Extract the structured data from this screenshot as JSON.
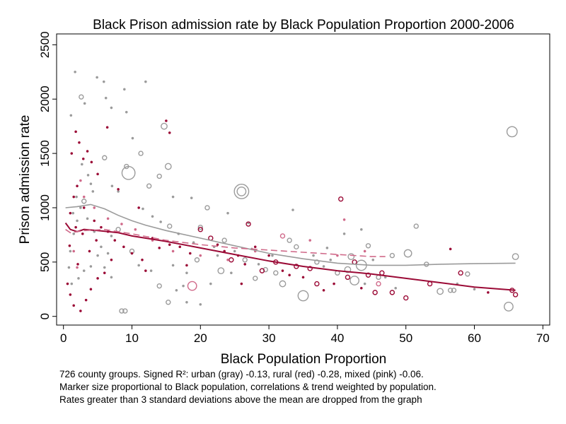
{
  "chart_data": {
    "type": "scatter",
    "title": "Black Prison admission rate by Black Population Proportion 2000-2006",
    "xlabel": "Black Population Proportion",
    "ylabel": "Prison admission rate",
    "xlim": [
      -1,
      71
    ],
    "ylim": [
      -80,
      2600
    ],
    "xticks": [
      "0",
      "10",
      "20",
      "30",
      "40",
      "50",
      "60",
      "70"
    ],
    "xtick_values": [
      0,
      10,
      20,
      30,
      40,
      50,
      60,
      70
    ],
    "yticks": [
      "0",
      "500",
      "1000",
      "1500",
      "2000",
      "2500"
    ],
    "ytick_values": [
      0,
      500,
      1000,
      1500,
      2000,
      2500
    ],
    "grid": false,
    "legend": "none",
    "colors": {
      "urban": "#9b9b9b",
      "rural": "#9b0a36",
      "mixed": "#d06a8a"
    },
    "series": [
      {
        "group": "urban",
        "points": [
          [
            4.9,
            2200,
            1
          ],
          [
            1.7,
            2250,
            1
          ],
          [
            5.9,
            2160,
            1
          ],
          [
            8.9,
            2090,
            1
          ],
          [
            12.0,
            2160,
            1
          ],
          [
            2.6,
            2020,
            2
          ],
          [
            6.2,
            2010,
            1
          ],
          [
            3.1,
            1960,
            1
          ],
          [
            7.0,
            1920,
            1
          ],
          [
            1.1,
            1850,
            1
          ],
          [
            9.2,
            1880,
            1
          ],
          [
            10.1,
            1640,
            1
          ],
          [
            11.3,
            1500,
            2
          ],
          [
            65.5,
            1700,
            6
          ],
          [
            14.7,
            1750,
            3
          ],
          [
            6.0,
            1460,
            2
          ],
          [
            9.5,
            1320,
            8
          ],
          [
            9.2,
            1380,
            2
          ],
          [
            15.3,
            1380,
            3
          ],
          [
            14.0,
            1290,
            2
          ],
          [
            26.0,
            1150,
            9
          ],
          [
            26.0,
            1150,
            5
          ],
          [
            4.0,
            1220,
            1
          ],
          [
            3.0,
            1060,
            2
          ],
          [
            7.1,
            1200,
            1
          ],
          [
            8.0,
            1150,
            1
          ],
          [
            12.5,
            1200,
            2
          ],
          [
            16.0,
            1100,
            1
          ],
          [
            18.7,
            1090,
            1
          ],
          [
            21.0,
            1000,
            2
          ],
          [
            24.0,
            950,
            1
          ],
          [
            27.0,
            860,
            1
          ],
          [
            33.5,
            980,
            1
          ],
          [
            43.5,
            800,
            1
          ],
          [
            51.5,
            830,
            2
          ],
          [
            15.5,
            830,
            2
          ],
          [
            20.0,
            820,
            2
          ],
          [
            23.5,
            700,
            2
          ],
          [
            22.0,
            640,
            1
          ],
          [
            19.5,
            520,
            2
          ],
          [
            23.0,
            420,
            3
          ],
          [
            18.0,
            400,
            1
          ],
          [
            21.5,
            300,
            1
          ],
          [
            24.5,
            400,
            1
          ],
          [
            26.5,
            520,
            2
          ],
          [
            27.5,
            620,
            1
          ],
          [
            28.0,
            350,
            2
          ],
          [
            29.5,
            430,
            2
          ],
          [
            30.5,
            560,
            1
          ],
          [
            31.0,
            400,
            2
          ],
          [
            32.0,
            300,
            3
          ],
          [
            33.0,
            700,
            2
          ],
          [
            34.0,
            640,
            2
          ],
          [
            35.0,
            190,
            6
          ],
          [
            37.0,
            500,
            2
          ],
          [
            38.0,
            460,
            1
          ],
          [
            38.5,
            630,
            1
          ],
          [
            40.0,
            400,
            2
          ],
          [
            41.5,
            430,
            3
          ],
          [
            42.0,
            550,
            3
          ],
          [
            42.5,
            330,
            5
          ],
          [
            43.5,
            470,
            6
          ],
          [
            44.5,
            650,
            2
          ],
          [
            46.0,
            360,
            2
          ],
          [
            47.0,
            360,
            1
          ],
          [
            48.0,
            560,
            2
          ],
          [
            50.3,
            580,
            4
          ],
          [
            55.0,
            230,
            3
          ],
          [
            56.5,
            240,
            2
          ],
          [
            57.0,
            240,
            2
          ],
          [
            59.0,
            390,
            2
          ],
          [
            65.0,
            90,
            5
          ],
          [
            66.0,
            550,
            3
          ],
          [
            16.0,
            470,
            1
          ],
          [
            16.5,
            240,
            1
          ],
          [
            17.5,
            280,
            1
          ],
          [
            18.0,
            130,
            1
          ],
          [
            20.0,
            110,
            1
          ],
          [
            14.0,
            280,
            2
          ],
          [
            15.3,
            130,
            2
          ],
          [
            12.8,
            420,
            1
          ],
          [
            11.0,
            470,
            1
          ],
          [
            10.0,
            600,
            2
          ],
          [
            8.0,
            800,
            2
          ],
          [
            7.0,
            740,
            1
          ],
          [
            6.5,
            580,
            1
          ],
          [
            5.5,
            640,
            1
          ],
          [
            4.5,
            780,
            1
          ],
          [
            3.5,
            900,
            1
          ],
          [
            2.5,
            1000,
            1
          ],
          [
            2.0,
            880,
            1
          ],
          [
            1.5,
            760,
            1
          ],
          [
            1.0,
            600,
            1
          ],
          [
            0.8,
            450,
            1
          ],
          [
            1.2,
            300,
            1
          ],
          [
            2.2,
            350,
            1
          ],
          [
            3.0,
            420,
            1
          ],
          [
            4.0,
            460,
            1
          ],
          [
            5.0,
            560,
            1
          ],
          [
            6.0,
            450,
            1
          ],
          [
            7.0,
            360,
            1
          ],
          [
            8.5,
            50,
            2
          ],
          [
            9.0,
            50,
            2
          ],
          [
            2.7,
            1400,
            1
          ],
          [
            3.6,
            1300,
            1
          ],
          [
            4.3,
            1150,
            1
          ],
          [
            1.9,
            1100,
            1
          ],
          [
            1.4,
            950,
            1
          ],
          [
            11.6,
            990,
            1
          ],
          [
            13.0,
            920,
            1
          ],
          [
            14.2,
            870,
            1
          ],
          [
            16.8,
            760,
            1
          ],
          [
            19.0,
            680,
            1
          ],
          [
            22.5,
            560,
            1
          ],
          [
            25.0,
            600,
            1
          ],
          [
            28.5,
            480,
            1
          ],
          [
            36.5,
            560,
            1
          ],
          [
            39.0,
            520,
            1
          ],
          [
            41.0,
            760,
            1
          ],
          [
            44.0,
            300,
            1
          ],
          [
            45.2,
            520,
            1
          ],
          [
            48.5,
            260,
            1
          ],
          [
            53.0,
            480,
            2
          ],
          [
            57.5,
            300,
            1
          ],
          [
            60.0,
            250,
            1
          ]
        ]
      },
      {
        "group": "rural",
        "points": [
          [
            1.8,
            1700,
            1
          ],
          [
            2.3,
            1600,
            1
          ],
          [
            1.2,
            1500,
            1
          ],
          [
            2.9,
            1450,
            1
          ],
          [
            3.5,
            1520,
            1
          ],
          [
            4.1,
            1420,
            1
          ],
          [
            5.0,
            1310,
            1
          ],
          [
            6.4,
            1740,
            1
          ],
          [
            8.0,
            1170,
            1
          ],
          [
            15.0,
            1800,
            1
          ],
          [
            15.5,
            1690,
            1
          ],
          [
            11.0,
            1000,
            1
          ],
          [
            2.0,
            1200,
            1
          ],
          [
            1.5,
            1100,
            1
          ],
          [
            1.0,
            950,
            1
          ],
          [
            3.0,
            1000,
            1
          ],
          [
            4.5,
            880,
            1
          ],
          [
            5.5,
            820,
            1
          ],
          [
            6.5,
            780,
            1
          ],
          [
            7.5,
            700,
            1
          ],
          [
            8.8,
            640,
            1
          ],
          [
            10.0,
            580,
            1
          ],
          [
            11.5,
            520,
            1
          ],
          [
            13.0,
            720,
            1
          ],
          [
            14.0,
            630,
            1
          ],
          [
            15.5,
            660,
            1
          ],
          [
            17.0,
            640,
            1
          ],
          [
            18.5,
            580,
            1
          ],
          [
            20.0,
            800,
            2
          ],
          [
            21.5,
            720,
            2
          ],
          [
            22.5,
            660,
            1
          ],
          [
            23.5,
            600,
            1
          ],
          [
            24.5,
            520,
            2
          ],
          [
            25.5,
            560,
            1
          ],
          [
            26.5,
            480,
            1
          ],
          [
            27.0,
            850,
            2
          ],
          [
            28.0,
            640,
            1
          ],
          [
            29.0,
            420,
            2
          ],
          [
            30.0,
            560,
            1
          ],
          [
            31.0,
            500,
            2
          ],
          [
            32.0,
            420,
            1
          ],
          [
            33.0,
            380,
            1
          ],
          [
            34.0,
            460,
            2
          ],
          [
            35.0,
            360,
            1
          ],
          [
            36.0,
            440,
            2
          ],
          [
            37.0,
            300,
            2
          ],
          [
            38.0,
            240,
            1
          ],
          [
            39.5,
            300,
            1
          ],
          [
            40.5,
            1080,
            2
          ],
          [
            41.5,
            360,
            2
          ],
          [
            42.5,
            500,
            2
          ],
          [
            43.5,
            260,
            1
          ],
          [
            44.5,
            380,
            2
          ],
          [
            45.5,
            220,
            2
          ],
          [
            46.5,
            400,
            2
          ],
          [
            48.0,
            220,
            2
          ],
          [
            50.0,
            170,
            2
          ],
          [
            53.5,
            300,
            2
          ],
          [
            56.5,
            620,
            1
          ],
          [
            58.0,
            400,
            2
          ],
          [
            62.0,
            220,
            1
          ],
          [
            65.5,
            240,
            2
          ],
          [
            66.0,
            200,
            2
          ],
          [
            0.6,
            300,
            1
          ],
          [
            1.0,
            200,
            1
          ],
          [
            1.5,
            100,
            1
          ],
          [
            2.5,
            50,
            1
          ],
          [
            3.3,
            150,
            1
          ],
          [
            4.0,
            250,
            1
          ],
          [
            5.0,
            350,
            1
          ],
          [
            6.0,
            400,
            1
          ],
          [
            7.0,
            520,
            1
          ],
          [
            2.8,
            760,
            1
          ],
          [
            1.8,
            820,
            1
          ],
          [
            3.8,
            600,
            1
          ],
          [
            4.8,
            700,
            1
          ],
          [
            0.9,
            650,
            1
          ],
          [
            2.1,
            480,
            1
          ],
          [
            12.0,
            420,
            1
          ],
          [
            18.0,
            470,
            1
          ],
          [
            26.0,
            300,
            1
          ]
        ]
      },
      {
        "group": "mixed",
        "points": [
          [
            18.8,
            280,
            5
          ],
          [
            2.5,
            1250,
            1
          ],
          [
            3.0,
            1100,
            1
          ],
          [
            4.5,
            1000,
            1
          ],
          [
            6.5,
            900,
            1
          ],
          [
            8.5,
            850,
            1
          ],
          [
            10.5,
            800,
            1
          ],
          [
            13.0,
            700,
            1
          ],
          [
            16.0,
            600,
            1
          ],
          [
            20.0,
            560,
            1
          ],
          [
            24.0,
            520,
            1
          ],
          [
            28.0,
            600,
            1
          ],
          [
            32.0,
            740,
            2
          ],
          [
            36.0,
            700,
            1
          ],
          [
            40.0,
            560,
            1
          ],
          [
            44.0,
            600,
            1
          ],
          [
            46.0,
            300,
            2
          ],
          [
            41.0,
            890,
            1
          ],
          [
            1.5,
            600,
            1
          ],
          [
            2.0,
            450,
            1
          ]
        ]
      }
    ],
    "trend_lines": [
      {
        "group": "urban",
        "style": "solid",
        "x": [
          0.3,
          2,
          4,
          6,
          8,
          10,
          12,
          15,
          20,
          25,
          30,
          35,
          40,
          45,
          50,
          55,
          60,
          66
        ],
        "y": [
          1000,
          1010,
          1030,
          990,
          930,
          880,
          840,
          790,
          720,
          650,
          580,
          530,
          490,
          470,
          470,
          480,
          485,
          490
        ]
      },
      {
        "group": "rural",
        "style": "solid",
        "x": [
          0.3,
          1,
          2,
          3,
          5,
          8,
          10,
          15,
          20,
          25,
          30,
          35,
          40,
          45,
          50,
          55,
          60,
          66
        ],
        "y": [
          860,
          800,
          780,
          800,
          790,
          770,
          740,
          690,
          630,
          570,
          510,
          460,
          420,
          390,
          350,
          310,
          270,
          240
        ]
      },
      {
        "group": "mixed",
        "style": "dashed",
        "x": [
          0.3,
          1,
          3,
          6,
          10,
          15,
          20,
          25,
          30,
          35,
          40,
          45,
          47
        ],
        "y": [
          800,
          770,
          790,
          800,
          760,
          700,
          660,
          630,
          610,
          590,
          570,
          550,
          550
        ]
      }
    ]
  },
  "notes": [
    "726 county groups. Signed R²: urban (gray) -0.13, rural (red) -0.28, mixed (pink) -0.06.",
    "Marker size proportional to Black population, correlations & trend weighted by population.",
    "Rates greater than 3 standard deviations above the mean are dropped from the graph"
  ]
}
